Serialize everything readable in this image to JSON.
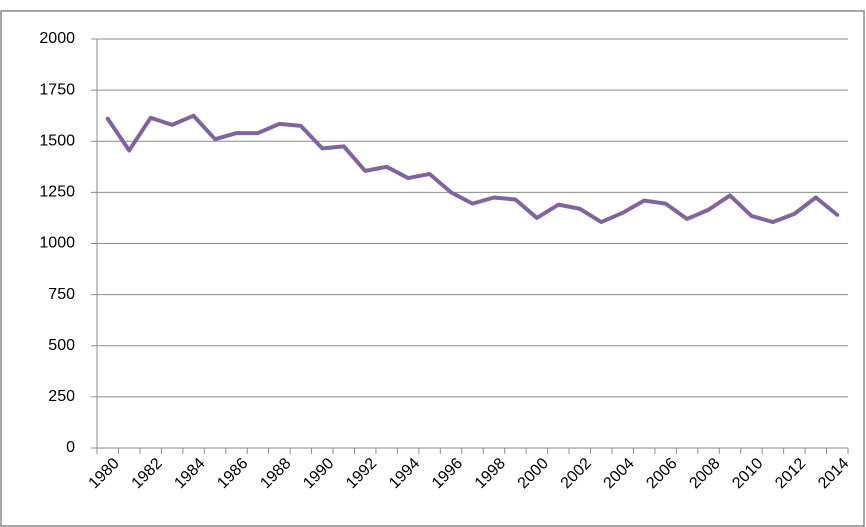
{
  "chart_data": {
    "type": "line",
    "categories": [
      "1980",
      null,
      "1982",
      null,
      "1984",
      null,
      "1986",
      null,
      "1988",
      null,
      "1990",
      null,
      "1992",
      null,
      "1994",
      null,
      "1996",
      null,
      "1998",
      null,
      "2000",
      null,
      "2002",
      null,
      "2004",
      null,
      "2006",
      null,
      "2008",
      null,
      "2010",
      null,
      "2012",
      null,
      "2014"
    ],
    "values": [
      1610,
      1455,
      1615,
      1580,
      1625,
      1510,
      1540,
      1540,
      1585,
      1575,
      1465,
      1475,
      1355,
      1375,
      1320,
      1340,
      1250,
      1195,
      1225,
      1215,
      1125,
      1190,
      1170,
      1105,
      1150,
      1210,
      1195,
      1120,
      1165,
      1235,
      1135,
      1105,
      1145,
      1225,
      1140
    ],
    "color": "#8064a2",
    "ylim": [
      0,
      2000
    ],
    "yticks": [
      0,
      250,
      500,
      750,
      1000,
      1250,
      1500,
      1750,
      2000
    ],
    "grid": true
  }
}
